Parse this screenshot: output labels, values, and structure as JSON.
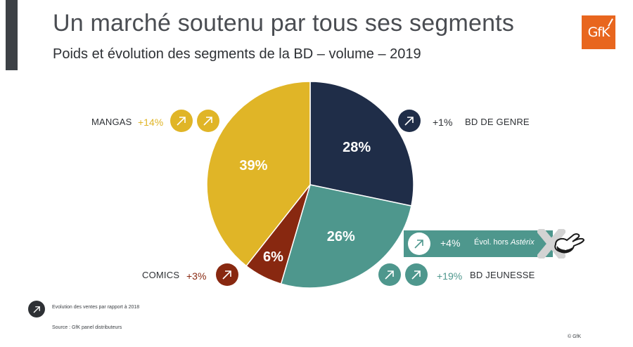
{
  "header": {
    "title": "Un marché soutenu par tous ses segments",
    "subtitle": "Poids et évolution des segments de la BD – volume – 2019",
    "logo_text": "GfK"
  },
  "colors": {
    "bd_de_genre": "#1f2d48",
    "bd_jeunesse": "#4e978d",
    "comics": "#882810",
    "mangas": "#e0b527",
    "accent_orange": "#e8661e",
    "dark": "#2e3135"
  },
  "chart_data": {
    "type": "pie",
    "title": "Poids et évolution des segments de la BD – volume – 2019",
    "unit": "% of volume",
    "start_angle": "12 o'clock, clockwise",
    "slices": [
      {
        "name": "BD DE GENRE",
        "value": 28,
        "label": "28%",
        "growth": "+1%",
        "growth_arrows": 1
      },
      {
        "name": "BD JEUNESSE",
        "value": 26,
        "label": "26%",
        "growth": "+19%",
        "growth_arrows": 2,
        "note": {
          "growth": "+4%",
          "text": "Évol. hors ",
          "text_italic": "Astérix"
        }
      },
      {
        "name": "COMICS",
        "value": 6,
        "label": "6%",
        "growth": "+3%",
        "growth_arrows": 1
      },
      {
        "name": "MANGAS",
        "value": 39,
        "label": "39%",
        "growth": "+14%",
        "growth_arrows": 2
      }
    ]
  },
  "legend": {
    "icon": "arrow-up-right-icon",
    "text": "Evolution des ventes par rapport à 2018"
  },
  "footer": {
    "source": "Source : GfK panel distributeurs",
    "copyright": "© GfK"
  }
}
